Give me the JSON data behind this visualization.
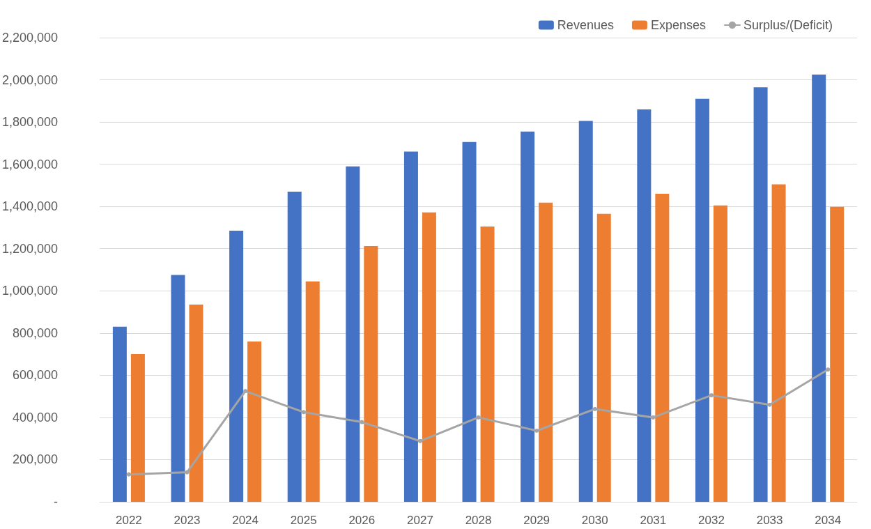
{
  "chart_data": {
    "type": "bar",
    "categories": [
      "2022",
      "2023",
      "2024",
      "2025",
      "2026",
      "2027",
      "2028",
      "2029",
      "2030",
      "2031",
      "2032",
      "2033",
      "2034"
    ],
    "series": [
      {
        "name": "Revenues",
        "color": "#4472c4",
        "values": [
          830000,
          1075000,
          1285000,
          1470000,
          1590000,
          1660000,
          1705000,
          1755000,
          1805000,
          1860000,
          1910000,
          1965000,
          2025000
        ]
      },
      {
        "name": "Expenses",
        "color": "#ed7d31",
        "values": [
          700000,
          935000,
          760000,
          1045000,
          1212000,
          1372000,
          1305000,
          1418000,
          1365000,
          1460000,
          1405000,
          1505000,
          1398000
        ]
      },
      {
        "name": "Surplus/(Deficit)",
        "type": "line",
        "color": "#a5a5a5",
        "values": [
          130000,
          140000,
          525000,
          425000,
          378000,
          288000,
          400000,
          337000,
          440000,
          400000,
          505000,
          460000,
          627000
        ]
      }
    ],
    "ylim": [
      0,
      2200000
    ],
    "yticks": [
      {
        "value": 0,
        "label": "-"
      },
      {
        "value": 200000,
        "label": "200,000"
      },
      {
        "value": 400000,
        "label": "400,000"
      },
      {
        "value": 600000,
        "label": "600,000"
      },
      {
        "value": 800000,
        "label": "800,000"
      },
      {
        "value": 1000000,
        "label": "1,000,000"
      },
      {
        "value": 1200000,
        "label": "1,200,000"
      },
      {
        "value": 1400000,
        "label": "1,400,000"
      },
      {
        "value": 1600000,
        "label": "1,600,000"
      },
      {
        "value": 1800000,
        "label": "1,800,000"
      },
      {
        "value": 2000000,
        "label": "2,000,000"
      },
      {
        "value": 2200000,
        "label": "2,200,000"
      }
    ],
    "grid": "y",
    "legend": "top right",
    "marker": "circle",
    "line_style": "solid"
  }
}
